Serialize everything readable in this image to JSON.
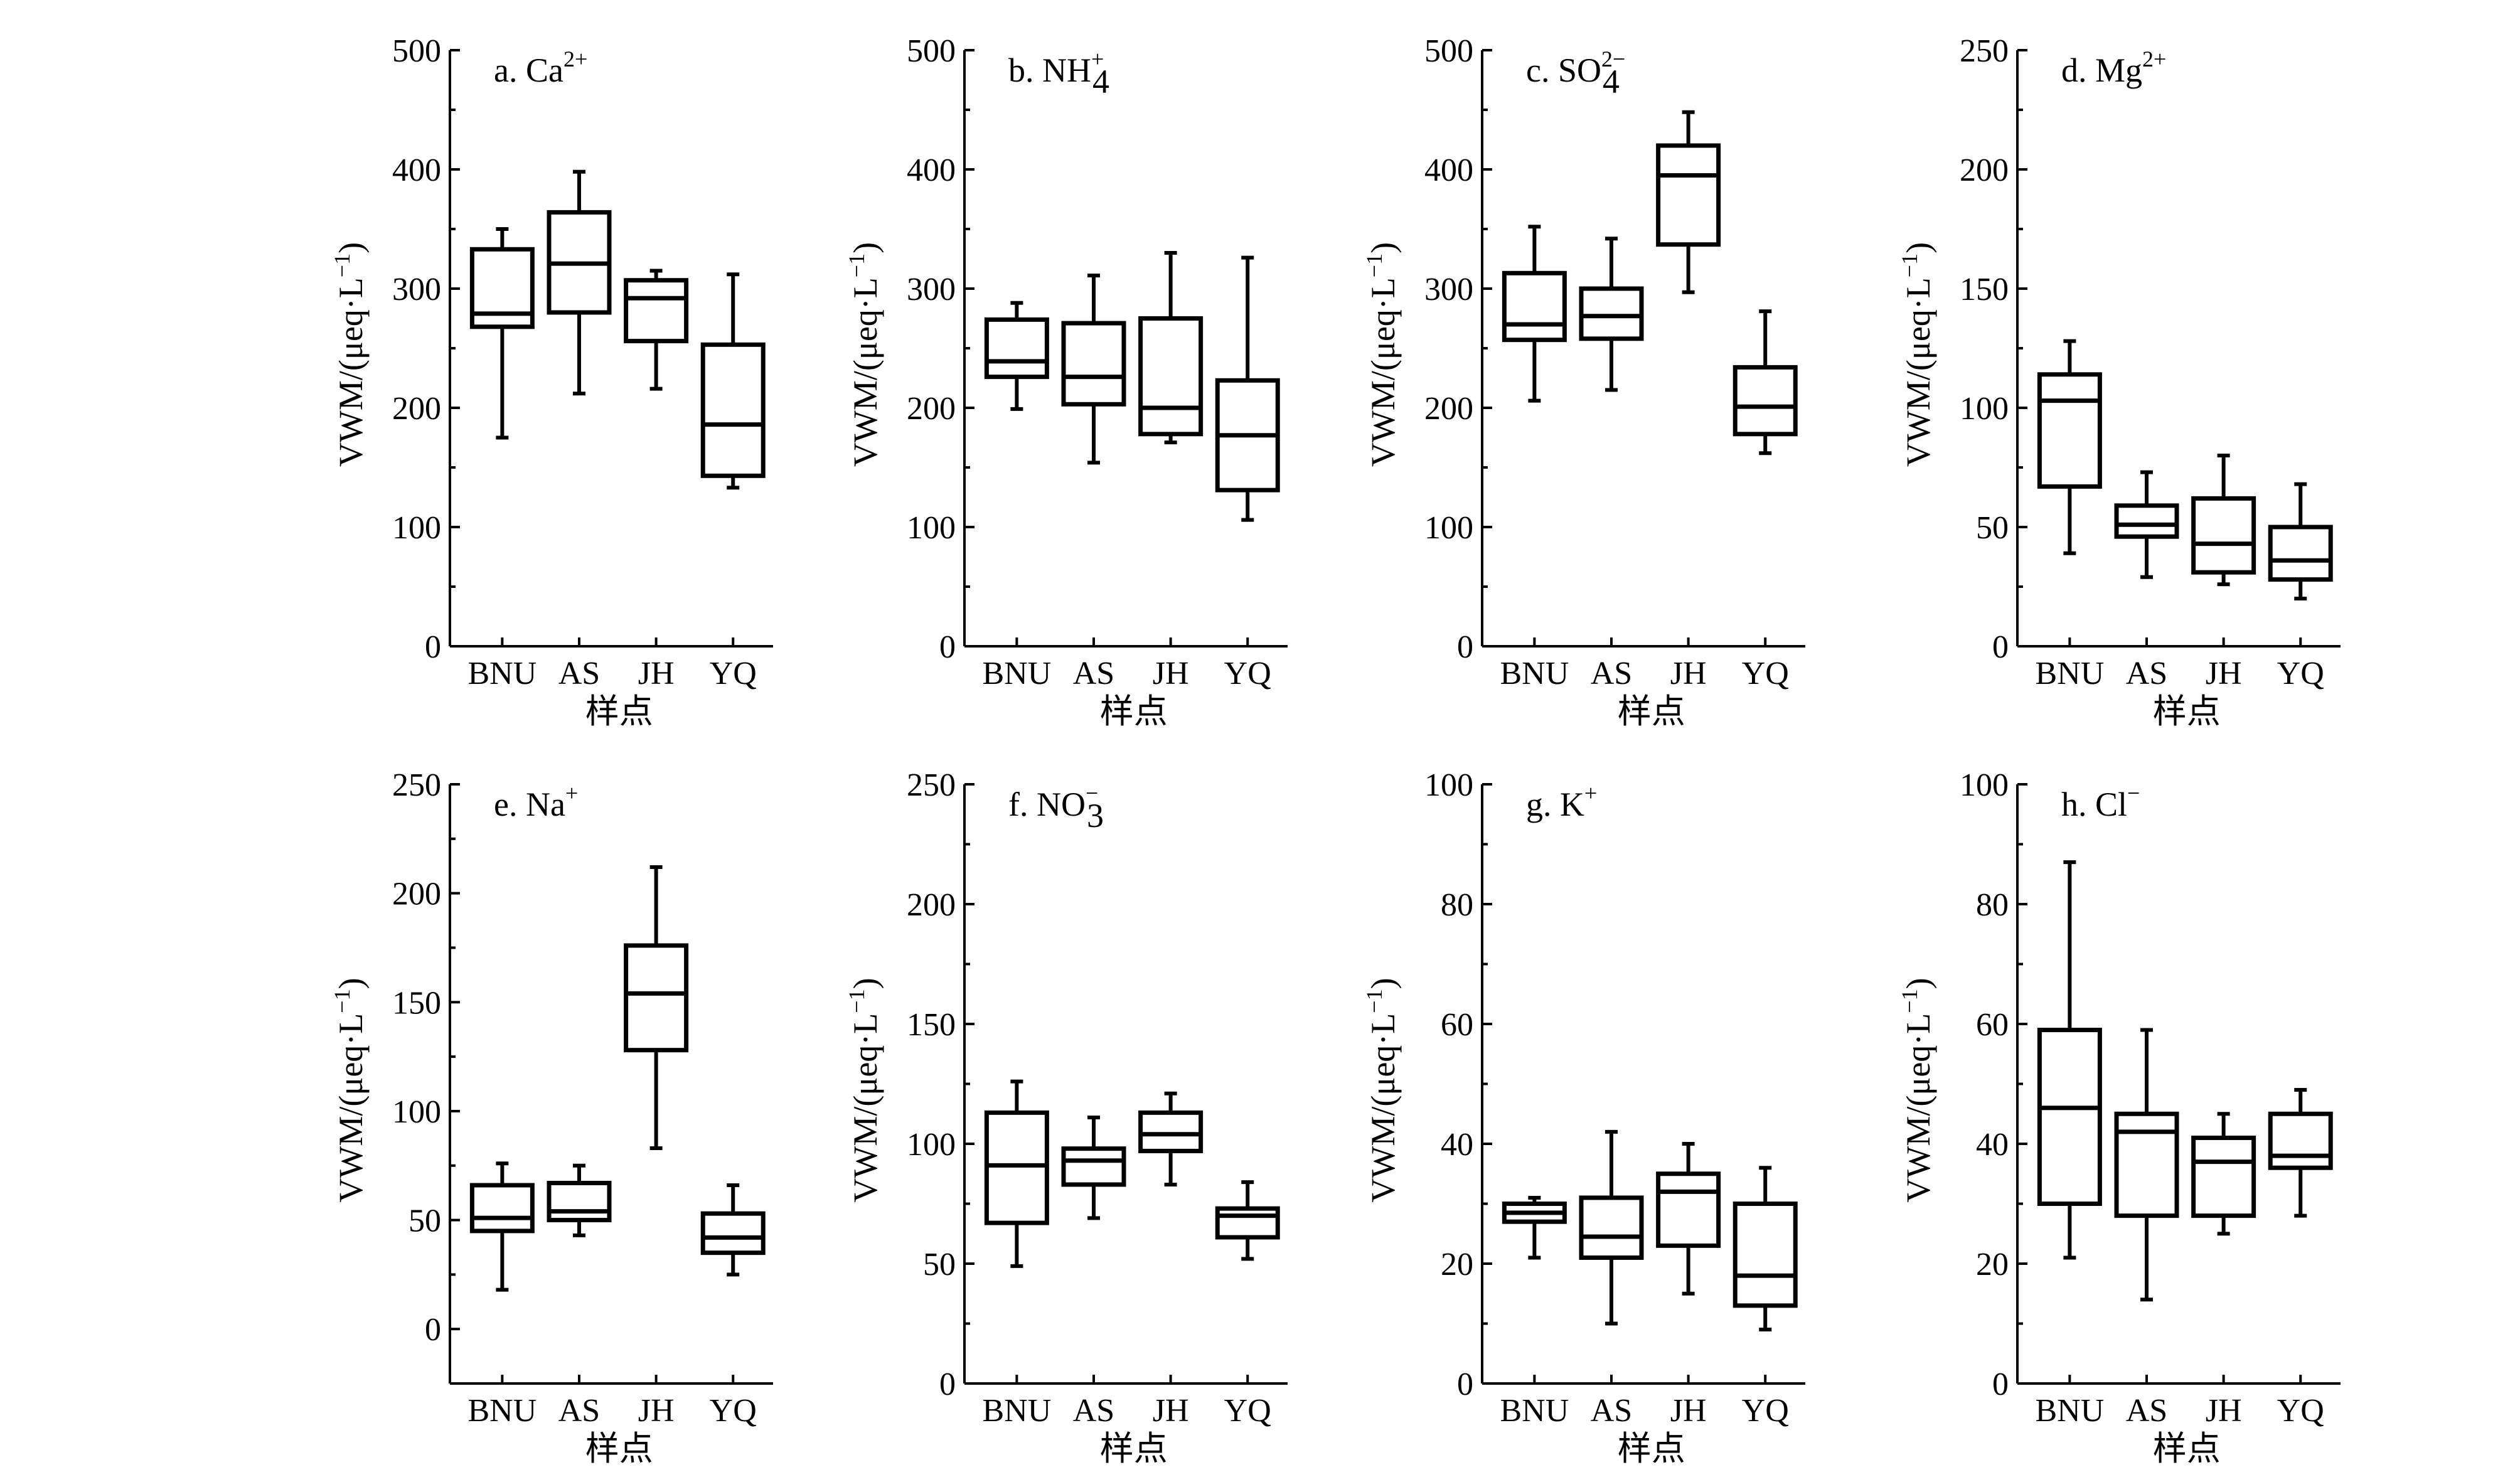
{
  "chart_data": [
    {
      "id": "a",
      "type": "box",
      "title_main": "a. Ca",
      "title_sup": "2+",
      "title_sub": "",
      "ylabel": "VWM/(μeq·L",
      "ylabel_sup": "−1",
      "ylabel_end": ")",
      "xlabel": "样点",
      "categories": [
        "BNU",
        "AS",
        "JH",
        "YQ"
      ],
      "ylim": [
        0,
        500
      ],
      "yticks": [
        0,
        100,
        200,
        300,
        400,
        500
      ],
      "boxes": [
        {
          "min": 175,
          "q1": 268,
          "median": 279,
          "q3": 333,
          "max": 350
        },
        {
          "min": 212,
          "q1": 280,
          "median": 321,
          "q3": 364,
          "max": 398
        },
        {
          "min": 216,
          "q1": 256,
          "median": 292,
          "q3": 307,
          "max": 315
        },
        {
          "min": 133,
          "q1": 143,
          "median": 186,
          "q3": 253,
          "max": 312
        }
      ]
    },
    {
      "id": "b",
      "type": "box",
      "title_main": "b. NH",
      "title_sup": "+",
      "title_sub": "4",
      "ylabel": "VWM/(μeq·L",
      "ylabel_sup": "−1",
      "ylabel_end": ")",
      "xlabel": "样点",
      "categories": [
        "BNU",
        "AS",
        "JH",
        "YQ"
      ],
      "ylim": [
        0,
        500
      ],
      "yticks": [
        0,
        100,
        200,
        300,
        400,
        500
      ],
      "boxes": [
        {
          "min": 199,
          "q1": 226,
          "median": 239,
          "q3": 274,
          "max": 288
        },
        {
          "min": 154,
          "q1": 203,
          "median": 226,
          "q3": 271,
          "max": 311
        },
        {
          "min": 171,
          "q1": 178,
          "median": 200,
          "q3": 275,
          "max": 330
        },
        {
          "min": 106,
          "q1": 131,
          "median": 177,
          "q3": 223,
          "max": 326
        }
      ]
    },
    {
      "id": "c",
      "type": "box",
      "title_main": "c. SO",
      "title_sup": "2−",
      "title_sub": "4",
      "ylabel": "VWM/(μeq·L",
      "ylabel_sup": "−1",
      "ylabel_end": ")",
      "xlabel": "样点",
      "categories": [
        "BNU",
        "AS",
        "JH",
        "YQ"
      ],
      "ylim": [
        0,
        500
      ],
      "yticks": [
        0,
        100,
        200,
        300,
        400,
        500
      ],
      "boxes": [
        {
          "min": 206,
          "q1": 257,
          "median": 270,
          "q3": 313,
          "max": 352
        },
        {
          "min": 215,
          "q1": 258,
          "median": 277,
          "q3": 300,
          "max": 342
        },
        {
          "min": 297,
          "q1": 337,
          "median": 395,
          "q3": 420,
          "max": 448
        },
        {
          "min": 162,
          "q1": 178,
          "median": 201,
          "q3": 234,
          "max": 281
        }
      ]
    },
    {
      "id": "d",
      "type": "box",
      "title_main": "d. Mg",
      "title_sup": "2+",
      "title_sub": "",
      "ylabel": "VWM/(μeq·L",
      "ylabel_sup": "−1",
      "ylabel_end": ")",
      "xlabel": "样点",
      "categories": [
        "BNU",
        "AS",
        "JH",
        "YQ"
      ],
      "ylim": [
        0,
        250
      ],
      "yticks": [
        0,
        50,
        100,
        150,
        200,
        250
      ],
      "boxes": [
        {
          "min": 39,
          "q1": 67,
          "median": 103,
          "q3": 114,
          "max": 128
        },
        {
          "min": 29,
          "q1": 46,
          "median": 51,
          "q3": 59,
          "max": 73
        },
        {
          "min": 26,
          "q1": 31,
          "median": 43,
          "q3": 62,
          "max": 80
        },
        {
          "min": 20,
          "q1": 28,
          "median": 36,
          "q3": 50,
          "max": 68
        }
      ]
    },
    {
      "id": "e",
      "type": "box",
      "title_main": "e. Na",
      "title_sup": "+",
      "title_sub": "",
      "ylabel": "VWM/(μeq·L",
      "ylabel_sup": "−1",
      "ylabel_end": ")",
      "xlabel": "样点",
      "categories": [
        "BNU",
        "AS",
        "JH",
        "YQ"
      ],
      "ylim": [
        -25,
        250
      ],
      "yticks": [
        0,
        50,
        100,
        150,
        200,
        250
      ],
      "boxes": [
        {
          "min": 18,
          "q1": 45,
          "median": 51,
          "q3": 66,
          "max": 76
        },
        {
          "min": 43,
          "q1": 50,
          "median": 54,
          "q3": 67,
          "max": 75
        },
        {
          "min": 83,
          "q1": 128,
          "median": 154,
          "q3": 176,
          "max": 212
        },
        {
          "min": 25,
          "q1": 35,
          "median": 42,
          "q3": 53,
          "max": 66
        }
      ]
    },
    {
      "id": "f",
      "type": "box",
      "title_main": "f. NO",
      "title_sup": "−",
      "title_sub": "3",
      "ylabel": "VWM/(μeq·L",
      "ylabel_sup": "−1",
      "ylabel_end": ")",
      "xlabel": "样点",
      "categories": [
        "BNU",
        "AS",
        "JH",
        "YQ"
      ],
      "ylim": [
        0,
        250
      ],
      "yticks": [
        0,
        50,
        100,
        150,
        200,
        250
      ],
      "boxes": [
        {
          "min": 49,
          "q1": 67,
          "median": 91,
          "q3": 113,
          "max": 126
        },
        {
          "min": 69,
          "q1": 83,
          "median": 93,
          "q3": 98,
          "max": 111
        },
        {
          "min": 83,
          "q1": 97,
          "median": 104,
          "q3": 113,
          "max": 121
        },
        {
          "min": 52,
          "q1": 61,
          "median": 70,
          "q3": 73,
          "max": 84
        }
      ]
    },
    {
      "id": "g",
      "type": "box",
      "title_main": "g. K",
      "title_sup": "+",
      "title_sub": "",
      "ylabel": "VWM/(μeq·L",
      "ylabel_sup": "−1",
      "ylabel_end": ")",
      "xlabel": "样点",
      "categories": [
        "BNU",
        "AS",
        "JH",
        "YQ"
      ],
      "ylim": [
        0,
        100
      ],
      "yticks": [
        0,
        20,
        40,
        60,
        80,
        100
      ],
      "boxes": [
        {
          "min": 21,
          "q1": 27,
          "median": 28.5,
          "q3": 30,
          "max": 31
        },
        {
          "min": 10,
          "q1": 21,
          "median": 24.5,
          "q3": 31,
          "max": 42
        },
        {
          "min": 15,
          "q1": 23,
          "median": 32,
          "q3": 35,
          "max": 40
        },
        {
          "min": 9,
          "q1": 13,
          "median": 18,
          "q3": 30,
          "max": 36
        }
      ]
    },
    {
      "id": "h",
      "type": "box",
      "title_main": "h. Cl",
      "title_sup": "−",
      "title_sub": "",
      "ylabel": "VWM/(μeq·L",
      "ylabel_sup": "−1",
      "ylabel_end": ")",
      "xlabel": "样点",
      "categories": [
        "BNU",
        "AS",
        "JH",
        "YQ"
      ],
      "ylim": [
        0,
        100
      ],
      "yticks": [
        0,
        20,
        40,
        60,
        80,
        100
      ],
      "boxes": [
        {
          "min": 21,
          "q1": 30,
          "median": 46,
          "q3": 59,
          "max": 87
        },
        {
          "min": 14,
          "q1": 28,
          "median": 42,
          "q3": 45,
          "max": 59
        },
        {
          "min": 25,
          "q1": 28,
          "median": 37,
          "q3": 41,
          "max": 45
        },
        {
          "min": 28,
          "q1": 36,
          "median": 38,
          "q3": 45,
          "max": 49
        }
      ]
    }
  ]
}
